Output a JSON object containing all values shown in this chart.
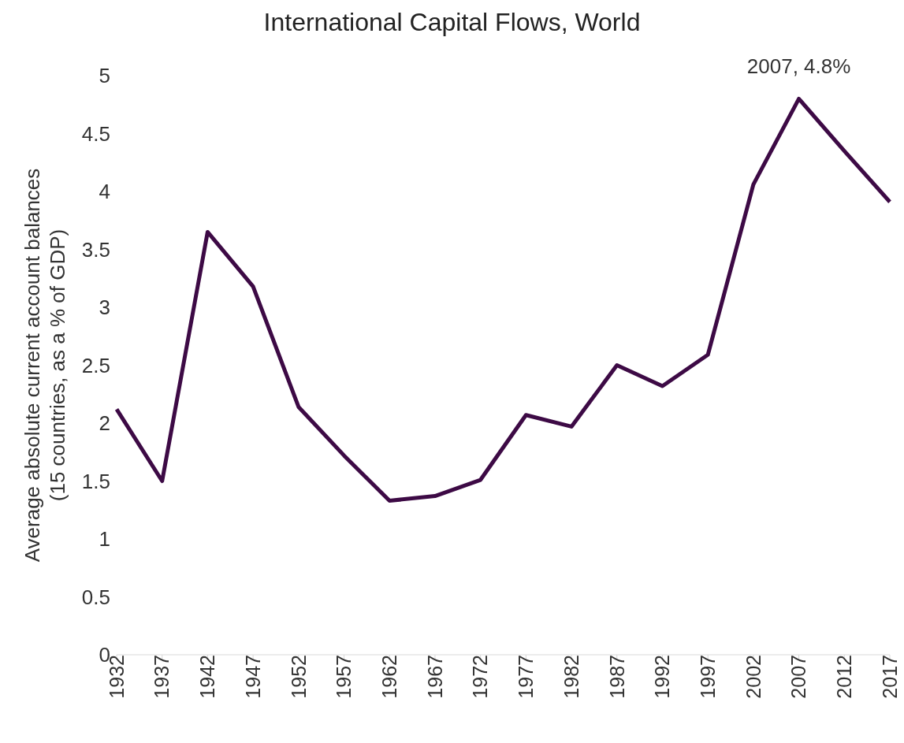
{
  "chart_data": {
    "type": "line",
    "title": "International Capital Flows, World",
    "ylabel": "Average absolute current account balances\n(15 countries, as a % of GDP)",
    "categories": [
      "1932",
      "1937",
      "1942",
      "1947",
      "1952",
      "1957",
      "1962",
      "1967",
      "1972",
      "1977",
      "1982",
      "1987",
      "1992",
      "1997",
      "2002",
      "2007",
      "2012",
      "2017"
    ],
    "series": [
      {
        "color": "#3d0a45",
        "values": [
          2.12,
          1.5,
          3.65,
          3.18,
          2.14,
          1.72,
          1.33,
          1.37,
          1.51,
          2.07,
          1.97,
          2.5,
          2.32,
          2.59,
          4.06,
          4.8,
          4.35,
          3.91
        ]
      }
    ],
    "ylim": [
      0,
      5
    ],
    "yticks": [
      0,
      0.5,
      1,
      1.5,
      2,
      2.5,
      3,
      3.5,
      4,
      4.5,
      5
    ],
    "annotations": [
      {
        "text": "2007, 4.8%",
        "x": "2007",
        "y": 4.8
      }
    ],
    "grid": false,
    "legend": false,
    "marker": "none",
    "line_style": "solid"
  }
}
